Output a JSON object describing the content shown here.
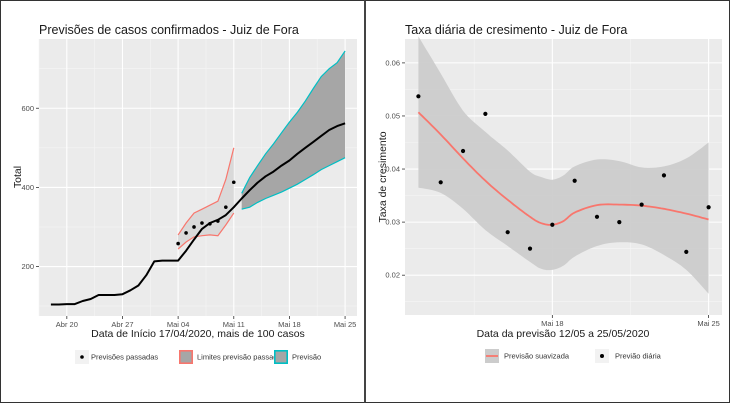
{
  "chart_data": [
    {
      "type": "line",
      "title": "Previsões de casos confirmados - Juiz de Fora",
      "xlabel": "Data de Início 17/04/2020, mais de 100 casos",
      "ylabel": "Total",
      "x_unit": "days since 2020-04-20",
      "x_ticks": [
        {
          "label": "Abr 20",
          "value": 0
        },
        {
          "label": "Abr 27",
          "value": 7
        },
        {
          "label": "Mai 04",
          "value": 14
        },
        {
          "label": "Mai 11",
          "value": 21
        },
        {
          "label": "Mai 18",
          "value": 28
        },
        {
          "label": "Mai 25",
          "value": 35
        }
      ],
      "y_ticks": [
        200,
        400,
        600
      ],
      "xlim": [
        -3.5,
        36.5
      ],
      "ylim": [
        75,
        775
      ],
      "grid": true,
      "legend_position": "bottom",
      "series": [
        {
          "name": "Casos confirmados",
          "color": "#000000",
          "x": [
            -2,
            -1,
            0,
            1,
            2,
            3,
            4,
            5,
            6,
            7,
            8,
            9,
            10,
            11,
            12,
            13,
            14,
            15,
            16,
            17,
            18,
            19,
            20,
            21,
            22,
            23,
            24,
            25,
            26,
            27,
            28,
            29,
            30,
            31,
            32,
            33,
            34,
            35
          ],
          "y": [
            104,
            104,
            105,
            105,
            113,
            118,
            128,
            128,
            128,
            130,
            140,
            152,
            178,
            213,
            215,
            215,
            215,
            240,
            268,
            295,
            310,
            318,
            330,
            350,
            372,
            393,
            412,
            428,
            440,
            455,
            468,
            485,
            500,
            515,
            530,
            545,
            555,
            562
          ]
        },
        {
          "name": "Previsões passadas",
          "type": "scatter",
          "color": "#000000",
          "x": [
            14,
            15,
            16,
            17,
            18,
            19,
            20,
            21
          ],
          "y": [
            258,
            285,
            300,
            310,
            308,
            315,
            350,
            413
          ]
        },
        {
          "name": "Limites previsão passada",
          "type": "ribbon",
          "stroke": "#f8766d",
          "fill": "#d9d9d9",
          "x": [
            14,
            15,
            16,
            17,
            18,
            19,
            20,
            21
          ],
          "lower": [
            244,
            262,
            275,
            278,
            280,
            278,
            305,
            335
          ],
          "upper": [
            280,
            310,
            335,
            345,
            355,
            365,
            420,
            500
          ]
        },
        {
          "name": "Previsão",
          "type": "ribbon",
          "stroke": "#00bfc4",
          "fill": "#a6a6a6",
          "x": [
            22,
            23,
            24,
            25,
            26,
            27,
            28,
            29,
            30,
            31,
            32,
            33,
            34,
            35
          ],
          "lower": [
            345,
            350,
            362,
            372,
            380,
            388,
            398,
            408,
            420,
            432,
            445,
            455,
            465,
            475
          ],
          "upper": [
            385,
            425,
            455,
            485,
            510,
            538,
            565,
            590,
            618,
            650,
            680,
            700,
            715,
            745
          ]
        }
      ],
      "legend": [
        {
          "label": "Previsões passadas",
          "kind": "point"
        },
        {
          "label": "Limites previsão passada",
          "kind": "box",
          "stroke": "#f8766d"
        },
        {
          "label": "Previsão",
          "kind": "box",
          "stroke": "#00bfc4"
        }
      ]
    },
    {
      "type": "scatter",
      "title": "Taxa diária de cresimento - Juiz de Fora",
      "xlabel": "Data da previsão 12/05 a 25/05/2020",
      "ylabel": "Taxa de cresimento",
      "x_unit": "days since 2020-05-12",
      "x_ticks": [
        {
          "label": "Mai 18",
          "value": 6
        },
        {
          "label": "Mai 25",
          "value": 13
        }
      ],
      "y_ticks": [
        0.02,
        0.03,
        0.04,
        0.05,
        0.06
      ],
      "xlim": [
        -0.6,
        13.6
      ],
      "ylim": [
        0.0125,
        0.0645
      ],
      "grid": true,
      "legend_position": "bottom",
      "points": {
        "name": "Previão diária",
        "color": "#000000",
        "x": [
          0,
          1,
          2,
          3,
          4,
          5,
          6,
          7,
          8,
          9,
          10,
          11,
          12,
          13
        ],
        "y": [
          0.0537,
          0.0375,
          0.0434,
          0.0504,
          0.0281,
          0.025,
          0.0295,
          0.0378,
          0.031,
          0.03,
          0.0333,
          0.0388,
          0.0244,
          0.0328
        ]
      },
      "smooth": {
        "name": "Previsão suavizada",
        "color": "#f8766d",
        "band_fill": "#cccccc",
        "x": [
          0,
          1,
          2,
          3,
          4,
          5,
          5.5,
          6,
          6.5,
          7,
          8,
          9,
          10,
          11,
          12,
          13
        ],
        "y": [
          0.0507,
          0.0465,
          0.042,
          0.0378,
          0.0342,
          0.031,
          0.0298,
          0.0295,
          0.0302,
          0.0318,
          0.0332,
          0.0333,
          0.0331,
          0.0325,
          0.0316,
          0.0305
        ],
        "lower": [
          0.0365,
          0.0355,
          0.0325,
          0.0285,
          0.0255,
          0.0225,
          0.0212,
          0.021,
          0.0218,
          0.0235,
          0.0255,
          0.0262,
          0.0258,
          0.0238,
          0.021,
          0.0165
        ],
        "upper": [
          0.065,
          0.058,
          0.051,
          0.047,
          0.0435,
          0.0395,
          0.0385,
          0.038,
          0.0388,
          0.0405,
          0.0418,
          0.0415,
          0.0403,
          0.0405,
          0.042,
          0.045
        ]
      },
      "legend": [
        {
          "label": "Previsão suavizada",
          "kind": "line",
          "stroke": "#f8766d"
        },
        {
          "label": "Previão diária",
          "kind": "point"
        }
      ]
    }
  ]
}
